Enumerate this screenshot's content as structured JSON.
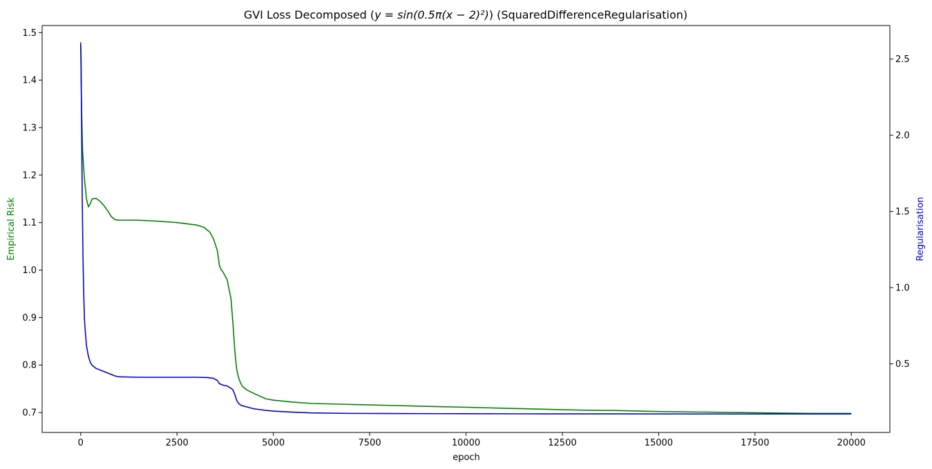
{
  "chart_data": {
    "type": "line",
    "title_parts": {
      "prefix": "GVI Loss Decomposed (",
      "math": "y = sin(0.5π(x − 2)²)",
      "suffix": ") (SquaredDifferenceRegularisation)"
    },
    "xlabel": "epoch",
    "ylabel_left": "Empirical Risk",
    "ylabel_right": "Regularisation",
    "xlim": [
      -1000,
      21000
    ],
    "ylim_left": [
      0.658,
      1.515
    ],
    "ylim_right": [
      0.05,
      2.72
    ],
    "x_ticks": [
      0,
      2500,
      5000,
      7500,
      10000,
      12500,
      15000,
      17500,
      20000
    ],
    "x_tick_labels": [
      "0",
      "2500",
      "5000",
      "7500",
      "10000",
      "12500",
      "15000",
      "17500",
      "20000"
    ],
    "y_left_ticks": [
      0.7,
      0.8,
      0.9,
      1.0,
      1.1,
      1.2,
      1.3,
      1.4,
      1.5
    ],
    "y_left_tick_labels": [
      "0.7",
      "0.8",
      "0.9",
      "1.0",
      "1.1",
      "1.2",
      "1.3",
      "1.4",
      "1.5"
    ],
    "y_right_ticks": [
      0.5,
      1.0,
      1.5,
      2.0,
      2.5
    ],
    "y_right_tick_labels": [
      "0.5",
      "1.0",
      "1.5",
      "2.0",
      "2.5"
    ],
    "grid": false,
    "legend": "none",
    "series": [
      {
        "axis": "left",
        "color": "#008000",
        "x": [
          0,
          20,
          50,
          100,
          150,
          200,
          250,
          300,
          400,
          500,
          600,
          700,
          800,
          900,
          1000,
          1500,
          2000,
          2500,
          3000,
          3200,
          3350,
          3450,
          3550,
          3600,
          3650,
          3700,
          3800,
          3900,
          3950,
          4000,
          4050,
          4100,
          4150,
          4200,
          4300,
          4500,
          4800,
          5000,
          5500,
          6000,
          7000,
          8000,
          9000,
          10000,
          11000,
          12000,
          13000,
          14000,
          15000,
          16000,
          17000,
          18000,
          19000,
          20000
        ],
        "y": [
          1.48,
          1.35,
          1.25,
          1.19,
          1.15,
          1.133,
          1.14,
          1.15,
          1.151,
          1.145,
          1.136,
          1.125,
          1.112,
          1.106,
          1.105,
          1.105,
          1.103,
          1.1,
          1.095,
          1.09,
          1.08,
          1.065,
          1.04,
          1.01,
          1.0,
          0.995,
          0.98,
          0.94,
          0.89,
          0.83,
          0.79,
          0.773,
          0.762,
          0.755,
          0.748,
          0.74,
          0.729,
          0.726,
          0.722,
          0.719,
          0.717,
          0.715,
          0.713,
          0.711,
          0.709,
          0.707,
          0.705,
          0.704,
          0.702,
          0.701,
          0.7,
          0.699,
          0.698,
          0.698
        ]
      },
      {
        "axis": "right",
        "color": "#0000cc",
        "x": [
          0,
          10,
          20,
          40,
          60,
          80,
          100,
          150,
          200,
          250,
          300,
          400,
          600,
          800,
          900,
          1000,
          1500,
          2000,
          2500,
          3000,
          3300,
          3450,
          3550,
          3600,
          3700,
          3800,
          3900,
          3950,
          4000,
          4050,
          4100,
          4150,
          4200,
          4300,
          4500,
          4800,
          5000,
          5500,
          6000,
          7000,
          8000,
          10000,
          12000,
          14000,
          16000,
          18000,
          20000
        ],
        "y": [
          2.6,
          2.5,
          2.2,
          1.6,
          1.2,
          0.95,
          0.78,
          0.62,
          0.55,
          0.51,
          0.49,
          0.47,
          0.45,
          0.43,
          0.42,
          0.415,
          0.412,
          0.412,
          0.412,
          0.412,
          0.41,
          0.405,
          0.39,
          0.37,
          0.36,
          0.355,
          0.34,
          0.33,
          0.3,
          0.26,
          0.24,
          0.23,
          0.225,
          0.218,
          0.205,
          0.195,
          0.19,
          0.183,
          0.178,
          0.175,
          0.174,
          0.173,
          0.172,
          0.172,
          0.171,
          0.171,
          0.171
        ]
      }
    ]
  }
}
